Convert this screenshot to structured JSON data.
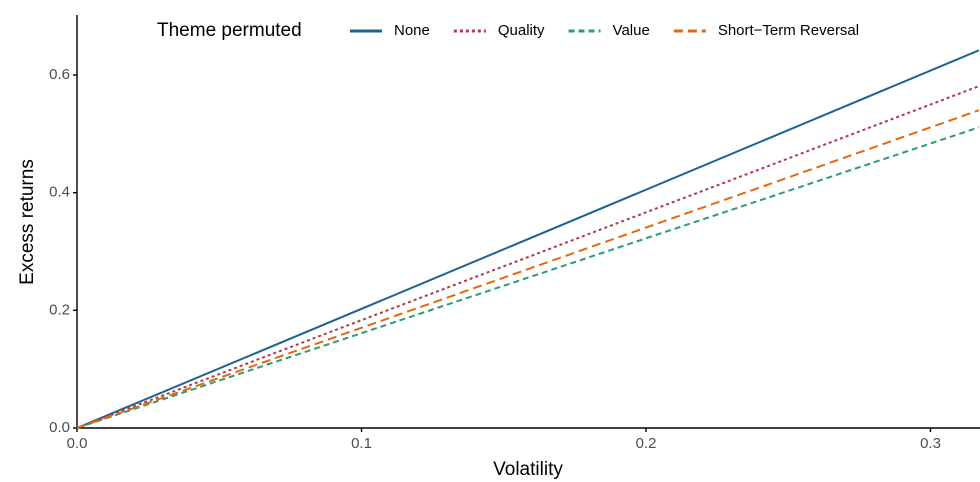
{
  "chart_data": {
    "type": "line",
    "x_label": "Volatility",
    "y_label": "Excess returns",
    "legend_title": "Theme permuted",
    "legend_position": "top",
    "x": [
      0,
      0.317
    ],
    "series": [
      {
        "name": "None",
        "color": "#1f6391",
        "dash": "none",
        "values": [
          0,
          0.642
        ]
      },
      {
        "name": "Quality",
        "color": "#b0394a",
        "dash": "3 3",
        "values": [
          0,
          0.581
        ]
      },
      {
        "name": "Value",
        "color": "#2a9d77",
        "dash": "6 4",
        "values": [
          0,
          0.511
        ]
      },
      {
        "name": "Short−Term Reversal",
        "color": "#e06a10",
        "dash": "9 5",
        "values": [
          0,
          0.54
        ]
      }
    ],
    "xlim": [
      0,
      0.3174
    ],
    "ylim": [
      0,
      0.702
    ],
    "xticks": [
      {
        "value": 0,
        "label": "0.0"
      },
      0.1,
      0.2,
      0.3
    ],
    "yticks": [
      {
        "value": 0,
        "label": "0.0"
      },
      0.2,
      0.4,
      0.6
    ],
    "grid": false
  }
}
